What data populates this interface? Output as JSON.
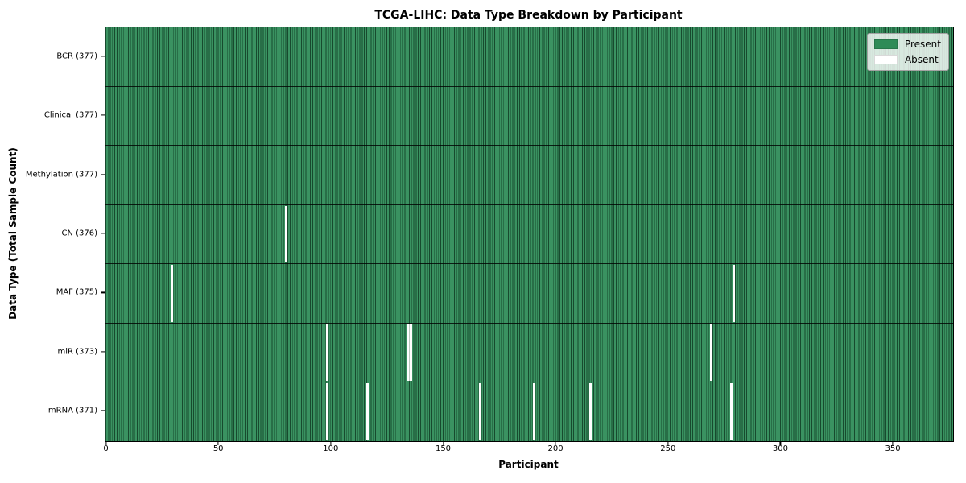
{
  "chart_data": {
    "type": "heatmap",
    "title": "TCGA-LIHC: Data Type Breakdown by Participant",
    "xlabel": "Participant",
    "ylabel": "Data Type (Total Sample Count)",
    "x_ticks": [
      0,
      50,
      100,
      150,
      200,
      250,
      300,
      350
    ],
    "x_max": 377,
    "n_participants": 377,
    "rows": [
      {
        "label": "BCR (377)",
        "data_type": "BCR",
        "present_count": 377,
        "absent_participants": []
      },
      {
        "label": "Clinical (377)",
        "data_type": "Clinical",
        "present_count": 377,
        "absent_participants": []
      },
      {
        "label": "Methylation (377)",
        "data_type": "Methylation",
        "present_count": 377,
        "absent_participants": []
      },
      {
        "label": "CN (376)",
        "data_type": "CN",
        "present_count": 376,
        "absent_participants": [
          80
        ]
      },
      {
        "label": "MAF (375)",
        "data_type": "MAF",
        "present_count": 375,
        "absent_participants": [
          29,
          279
        ]
      },
      {
        "label": "miR (373)",
        "data_type": "miR",
        "present_count": 373,
        "absent_participants": [
          98,
          134,
          135,
          269
        ]
      },
      {
        "label": "mRNA (371)",
        "data_type": "mRNA",
        "present_count": 371,
        "absent_participants": [
          98,
          116,
          166,
          190,
          215,
          278
        ]
      }
    ],
    "legend": {
      "position": "upper right",
      "entries": [
        {
          "label": "Present",
          "color": "#2e8b57"
        },
        {
          "label": "Absent",
          "color": "#ffffff"
        }
      ]
    },
    "colors": {
      "present": "#2e8b57",
      "absent": "#ffffff",
      "cell_grid_line": "rgba(0,10,5,0.5)",
      "row_border": "rgba(0,0,0,0.8)",
      "plot_border": "#000000",
      "legend_background": "rgba(255,255,255,0.8)"
    },
    "grid": false
  }
}
